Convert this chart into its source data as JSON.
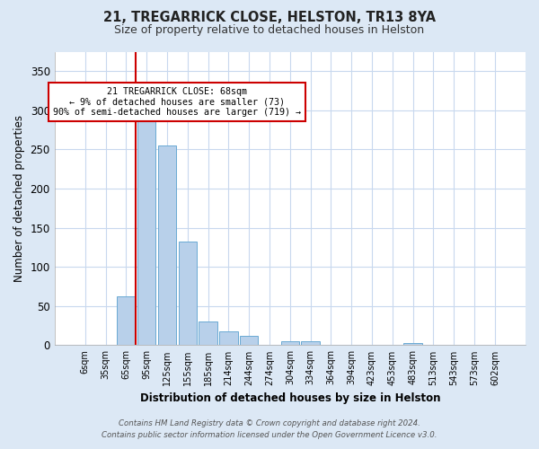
{
  "title1": "21, TREGARRICK CLOSE, HELSTON, TR13 8YA",
  "title2": "Size of property relative to detached houses in Helston",
  "xlabel": "Distribution of detached houses by size in Helston",
  "ylabel": "Number of detached properties",
  "footnote1": "Contains HM Land Registry data © Crown copyright and database right 2024.",
  "footnote2": "Contains public sector information licensed under the Open Government Licence v3.0.",
  "bar_labels": [
    "6sqm",
    "35sqm",
    "65sqm",
    "95sqm",
    "125sqm",
    "155sqm",
    "185sqm",
    "214sqm",
    "244sqm",
    "274sqm",
    "304sqm",
    "334sqm",
    "364sqm",
    "394sqm",
    "423sqm",
    "453sqm",
    "483sqm",
    "513sqm",
    "543sqm",
    "573sqm",
    "602sqm"
  ],
  "bar_values": [
    0,
    1,
    62,
    290,
    255,
    132,
    30,
    18,
    12,
    0,
    5,
    5,
    0,
    0,
    0,
    0,
    3,
    0,
    0,
    0,
    0
  ],
  "bar_color": "#b8d0ea",
  "bar_edge_color": "#6aaad4",
  "vline_color": "#cc0000",
  "vline_x": 2.5,
  "annotation_title": "21 TREGARRICK CLOSE: 68sqm",
  "annotation_line1": "← 9% of detached houses are smaller (73)",
  "annotation_line2": "90% of semi-detached houses are larger (719) →",
  "annotation_box_color": "#ffffff",
  "annotation_box_edge": "#cc0000",
  "ylim": [
    0,
    375
  ],
  "yticks": [
    0,
    50,
    100,
    150,
    200,
    250,
    300,
    350
  ],
  "plot_bg": "#dce8f5",
  "fig_bg": "#dce8f5"
}
